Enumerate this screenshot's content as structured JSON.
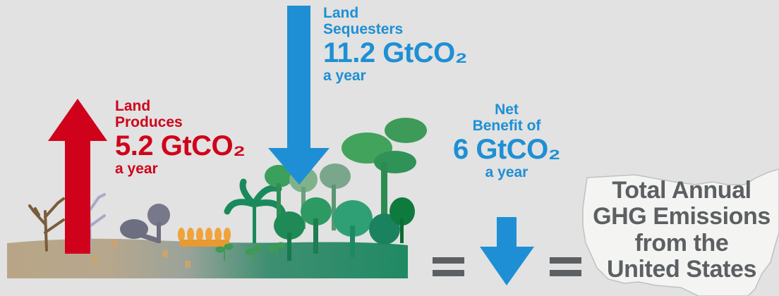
{
  "produces": {
    "label_line1": "Land",
    "label_line2": "Produces",
    "value": "5.2 GtCO₂",
    "period": "a year",
    "color": "#d0021b"
  },
  "sequesters": {
    "label_line1": "Land",
    "label_line2": "Sequesters",
    "value": "11.2 GtCO₂",
    "period": "a year",
    "color": "#1e8fd5"
  },
  "net": {
    "label_line1": "Net",
    "label_line2": "Benefit of",
    "value": "6 GtCO₂",
    "period": "a year",
    "color": "#1e8fd5"
  },
  "equation": {
    "lhs_symbol": "=",
    "rhs_symbol": "=",
    "arrow_icon": "down-arrow-icon"
  },
  "us_comparison": {
    "line1": "Total Annual",
    "line2": "GHG Emissions",
    "line3": "from the",
    "line4": "United States",
    "icon": "united-states-map-icon"
  },
  "landscape": {
    "icons": [
      "dead-tree-icon",
      "stump-icon",
      "felled-tree-icon",
      "wheat-icon",
      "seedling-icon",
      "palm-tree-icon",
      "forest-tree-icon"
    ]
  }
}
